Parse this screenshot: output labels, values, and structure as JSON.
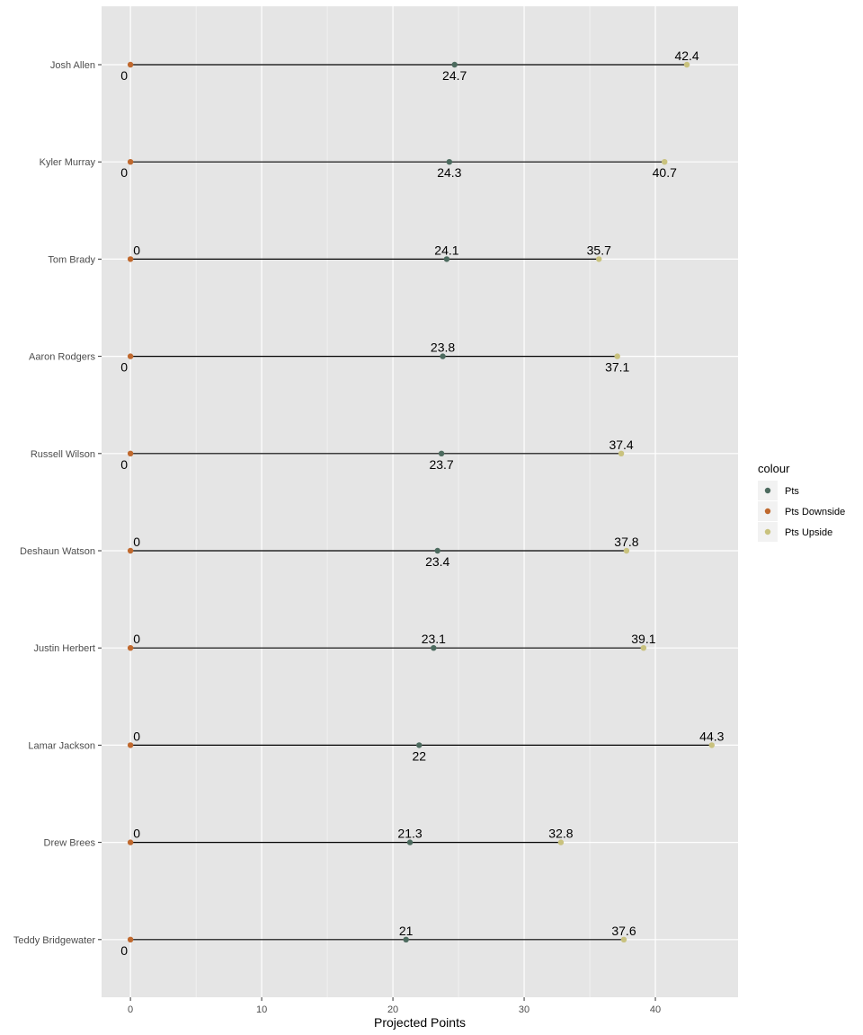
{
  "chart_data": {
    "type": "dumbbell",
    "xlabel": "Projected Points",
    "ylabel": "",
    "xlim": [
      -2.2,
      46.3
    ],
    "xticks": [
      0,
      10,
      20,
      30,
      40
    ],
    "grid": true,
    "legend_placement": "right",
    "legend_title": "colour",
    "colors": {
      "panel": "#e5e5e5",
      "grid": "#ffffff",
      "segment": "#000000",
      "Pts": "#4d6b5f",
      "Pts Downside": "#c0692e",
      "Pts Upside": "#c9c27e"
    },
    "series_names": [
      "Pts",
      "Pts Downside",
      "Pts Upside"
    ],
    "rows": [
      {
        "player": "Josh Allen",
        "downside": 0,
        "pts": 24.7,
        "upside": 42.4,
        "label_pos": {
          "down": "below",
          "pts": "below",
          "up": "above"
        }
      },
      {
        "player": "Kyler Murray",
        "downside": 0,
        "pts": 24.3,
        "upside": 40.7,
        "label_pos": {
          "down": "below",
          "pts": "below",
          "up": "below"
        }
      },
      {
        "player": "Tom Brady",
        "downside": 0,
        "pts": 24.1,
        "upside": 35.7,
        "label_pos": {
          "down": "above",
          "pts": "above",
          "up": "above"
        }
      },
      {
        "player": "Aaron Rodgers",
        "downside": 0,
        "pts": 23.8,
        "upside": 37.1,
        "label_pos": {
          "down": "below",
          "pts": "above",
          "up": "below"
        }
      },
      {
        "player": "Russell Wilson",
        "downside": 0,
        "pts": 23.7,
        "upside": 37.4,
        "label_pos": {
          "down": "below",
          "pts": "below",
          "up": "above"
        }
      },
      {
        "player": "Deshaun Watson",
        "downside": 0,
        "pts": 23.4,
        "upside": 37.8,
        "label_pos": {
          "down": "above",
          "pts": "below",
          "up": "above"
        }
      },
      {
        "player": "Justin Herbert",
        "downside": 0,
        "pts": 23.1,
        "upside": 39.1,
        "label_pos": {
          "down": "above",
          "pts": "above",
          "up": "above"
        }
      },
      {
        "player": "Lamar Jackson",
        "downside": 0,
        "pts": 22,
        "upside": 44.3,
        "label_pos": {
          "down": "above",
          "pts": "below",
          "up": "above"
        }
      },
      {
        "player": "Drew Brees",
        "downside": 0,
        "pts": 21.3,
        "upside": 32.8,
        "label_pos": {
          "down": "above",
          "pts": "above",
          "up": "above"
        }
      },
      {
        "player": "Teddy Bridgewater",
        "downside": 0,
        "pts": 21,
        "upside": 37.6,
        "label_pos": {
          "down": "below",
          "pts": "above",
          "up": "above"
        }
      }
    ]
  }
}
